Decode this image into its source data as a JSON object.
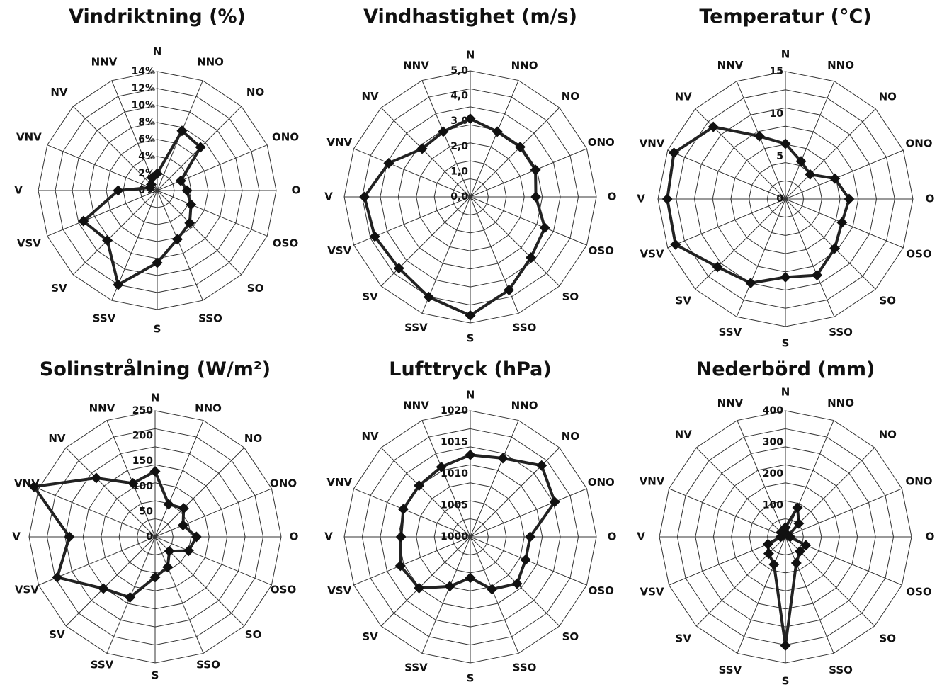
{
  "directions": [
    "N",
    "NNO",
    "NO",
    "ONO",
    "O",
    "OSO",
    "SO",
    "SSO",
    "S",
    "SSV",
    "SV",
    "VSV",
    "V",
    "VNV",
    "NV",
    "NNV"
  ],
  "colors": {
    "ink": "#111111",
    "line": "#222222",
    "grid": "#333333",
    "background": "#ffffff"
  },
  "chart_data": [
    {
      "type": "radar",
      "title": "Vindriktning (%)",
      "categories": [
        "N",
        "NNO",
        "NO",
        "ONO",
        "O",
        "OSO",
        "SO",
        "SSO",
        "S",
        "SSV",
        "SV",
        "VSV",
        "V",
        "VNV",
        "NV",
        "NNV"
      ],
      "ylim": [
        0,
        14
      ],
      "ticks": [
        "0%",
        "2%",
        "4%",
        "6%",
        "8%",
        "10%",
        "12%",
        "14%"
      ],
      "values": [
        2.0,
        7.6,
        7.2,
        3.0,
        3.5,
        4.3,
        5.4,
        6.2,
        8.5,
        12.0,
        8.3,
        9.4,
        4.6,
        0.9,
        1.0,
        1.6
      ],
      "grid": true
    },
    {
      "type": "radar",
      "title": "Vindhastighet (m/s)",
      "categories": [
        "N",
        "NNO",
        "NO",
        "ONO",
        "O",
        "OSO",
        "SO",
        "SSO",
        "S",
        "SSV",
        "SV",
        "VSV",
        "V",
        "VNV",
        "NV",
        "NNV"
      ],
      "ylim": [
        0,
        5
      ],
      "ticks": [
        "0,0",
        "1,0",
        "2,0",
        "3,0",
        "4,0",
        "5,0"
      ],
      "values": [
        3.1,
        2.8,
        2.8,
        2.8,
        2.6,
        3.2,
        3.4,
        4.0,
        4.7,
        4.3,
        4.0,
        4.1,
        4.2,
        3.5,
        2.7,
        2.8
      ],
      "grid": true
    },
    {
      "type": "radar",
      "title": "Temperatur (°C)",
      "categories": [
        "N",
        "NNO",
        "NO",
        "ONO",
        "O",
        "OSO",
        "SO",
        "SSO",
        "S",
        "SSV",
        "SV",
        "VSV",
        "V",
        "VNV",
        "NV",
        "NNV"
      ],
      "ylim": [
        0,
        15
      ],
      "ticks": [
        "0",
        "5",
        "10",
        "15"
      ],
      "values": [
        6.5,
        4.8,
        4.1,
        6.3,
        7.5,
        7.2,
        8.2,
        9.7,
        9.2,
        10.7,
        11.3,
        14.0,
        13.9,
        14.2,
        12.0,
        8.0
      ],
      "grid": true
    },
    {
      "type": "radar",
      "title": "Solinstrålning (W/m²)",
      "categories": [
        "N",
        "NNO",
        "NO",
        "ONO",
        "O",
        "OSO",
        "SO",
        "SSO",
        "S",
        "SSV",
        "SV",
        "VSV",
        "V",
        "VNV",
        "NV",
        "NNV"
      ],
      "ylim": [
        0,
        250
      ],
      "ticks": [
        "0",
        "50",
        "100",
        "150",
        "200",
        "250"
      ],
      "values": [
        130,
        70,
        80,
        60,
        82,
        72,
        40,
        65,
        80,
        130,
        145,
        210,
        170,
        260,
        165,
        115
      ],
      "grid": true
    },
    {
      "type": "radar",
      "title": "Lufttryck (hPa)",
      "categories": [
        "N",
        "NNO",
        "NO",
        "ONO",
        "O",
        "OSO",
        "SO",
        "SSO",
        "S",
        "SSV",
        "SV",
        "VSV",
        "V",
        "VNV",
        "NV",
        "NNV"
      ],
      "ylim": [
        1000,
        1020
      ],
      "ticks": [
        "1000",
        "1005",
        "1010",
        "1015",
        "1020"
      ],
      "values": [
        1013.0,
        1013.5,
        1016.0,
        1014.5,
        1009.5,
        1009.5,
        1010.5,
        1009.0,
        1006.5,
        1008.5,
        1011.5,
        1012.0,
        1011.0,
        1011.5,
        1011.5,
        1012.0
      ],
      "grid": true
    },
    {
      "type": "radar",
      "title": "Nederbörd (mm)",
      "categories": [
        "N",
        "NNO",
        "NO",
        "ONO",
        "O",
        "OSO",
        "SO",
        "SSO",
        "S",
        "SSV",
        "SV",
        "VSV",
        "V",
        "VNV",
        "NV",
        "NNV"
      ],
      "ylim": [
        0,
        400
      ],
      "ticks": [
        "100",
        "200",
        "300",
        "400"
      ],
      "values": [
        30,
        100,
        60,
        10,
        15,
        70,
        65,
        90,
        345,
        95,
        75,
        60,
        15,
        10,
        20,
        20
      ],
      "grid": true
    }
  ]
}
